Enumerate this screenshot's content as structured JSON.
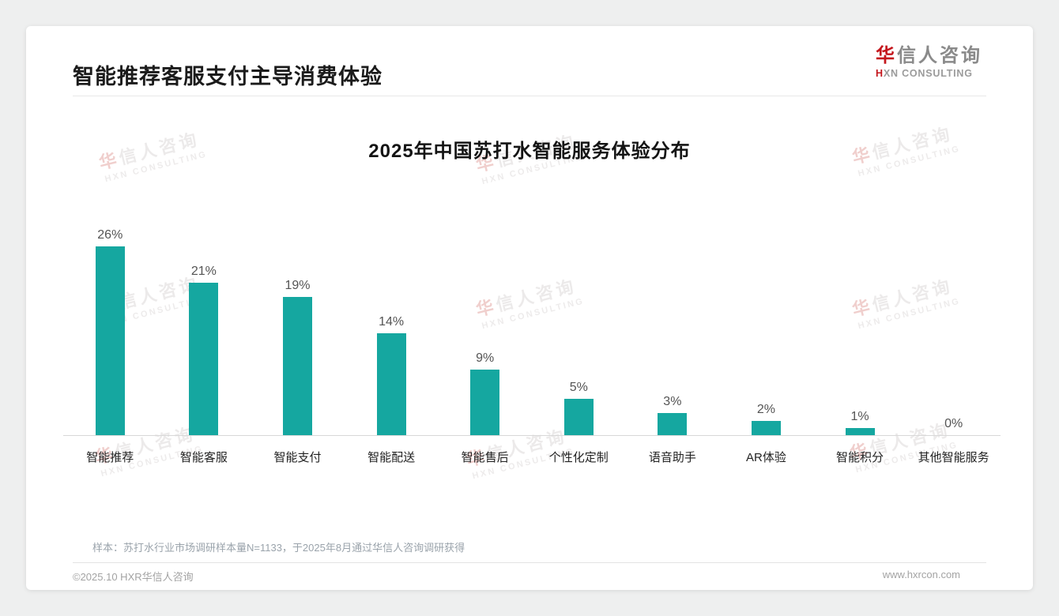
{
  "header": {
    "title": "智能推荐客服支付主导消费体验",
    "logo": {
      "cn_first": "华",
      "cn_rest": "信人咨询",
      "en_first": "H",
      "en_rest": "XN CONSULTING"
    }
  },
  "chart_data": {
    "type": "bar",
    "title": "2025年中国苏打水智能服务体验分布",
    "categories": [
      "智能推荐",
      "智能客服",
      "智能支付",
      "智能配送",
      "智能售后",
      "个性化定制",
      "语音助手",
      "AR体验",
      "智能积分",
      "其他智能服务"
    ],
    "values": [
      26,
      21,
      19,
      14,
      9,
      5,
      3,
      2,
      1,
      0
    ],
    "value_labels": [
      "26%",
      "21%",
      "19%",
      "14%",
      "9%",
      "5%",
      "3%",
      "2%",
      "1%",
      "0%"
    ],
    "xlabel": "",
    "ylabel": "",
    "ylim": [
      0,
      28
    ],
    "grid": false,
    "legend": null,
    "bar_color": "#15a7a0"
  },
  "watermark": {
    "line1_first": "华",
    "line1_rest": "信人咨询",
    "line2": "HXN CONSULTING"
  },
  "footnote": "样本：苏打水行业市场调研样本量N=1133，于2025年8月通过华信人咨询调研获得",
  "footer": {
    "left": "©2025.10 HXR华信人咨询",
    "right": "www.hxrcon.com"
  },
  "colors": {
    "accent_red": "#c4161c",
    "bar_teal": "#15a7a0",
    "title_text": "#1b1b1b",
    "muted_gray": "#a3a3a3"
  }
}
